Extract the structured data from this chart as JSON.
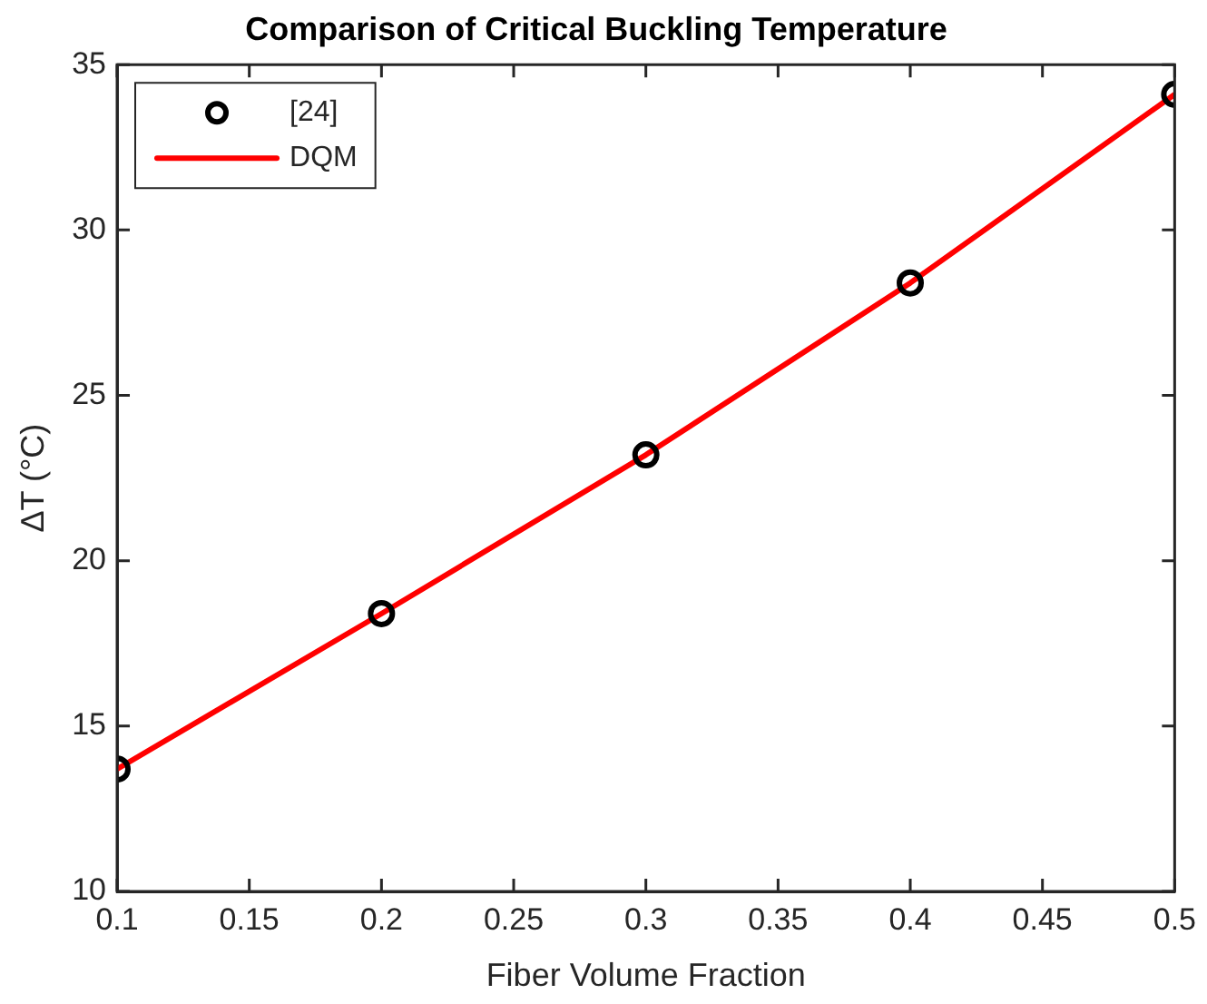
{
  "chart_data": {
    "type": "line",
    "title": "Comparison of Critical Buckling Temperature",
    "xlabel": "Fiber Volume Fraction",
    "ylabel": "ΔT (°C)",
    "x": [
      0.1,
      0.2,
      0.3,
      0.4,
      0.5
    ],
    "series": [
      {
        "name": "[24]",
        "type": "scatter",
        "color": "#000000",
        "marker": "circle",
        "values": [
          13.7,
          18.4,
          23.2,
          28.4,
          34.1
        ]
      },
      {
        "name": "DQM",
        "color": "#ff0000",
        "marker": "none",
        "line_style": "solid",
        "values": [
          13.7,
          18.4,
          23.2,
          28.4,
          34.1
        ]
      }
    ],
    "xlim": [
      0.1,
      0.5
    ],
    "xticks": [
      0.1,
      0.15,
      0.2,
      0.25,
      0.3,
      0.35,
      0.4,
      0.45,
      0.5
    ],
    "ylim": [
      10,
      35
    ],
    "yticks": [
      10,
      15,
      20,
      25,
      30,
      35
    ],
    "grid": false,
    "legend": "top left"
  }
}
